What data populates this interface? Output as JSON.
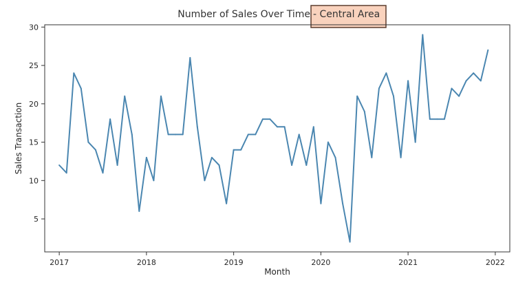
{
  "chart_data": {
    "type": "line",
    "title_main": "Number of Sales Over Time",
    "title_highlight": "- Central Area",
    "xlabel": "Month",
    "ylabel": "Sales Transaction",
    "x_ticks": [
      "2017",
      "2018",
      "2019",
      "2020",
      "2021",
      "2022"
    ],
    "y_ticks": [
      5,
      10,
      15,
      20,
      25,
      30
    ],
    "xlim": [
      "2016-11-01",
      "2022-03-01"
    ],
    "ylim": [
      0.7,
      30.3
    ],
    "grid": false,
    "colors": {
      "line": "#4a86b0",
      "highlight_fill": "#f9d2bd",
      "highlight_border": "#5c3d2e",
      "axis": "#333333"
    },
    "series": [
      {
        "x": [
          "2017-01",
          "2017-02",
          "2017-03",
          "2017-04",
          "2017-05",
          "2017-06",
          "2017-07",
          "2017-08",
          "2017-09",
          "2017-10",
          "2017-11",
          "2017-12",
          "2018-01",
          "2018-02",
          "2018-03",
          "2018-04",
          "2018-05",
          "2018-06",
          "2018-07",
          "2018-08",
          "2018-09",
          "2018-10",
          "2018-11",
          "2018-12",
          "2019-01",
          "2019-02",
          "2019-03",
          "2019-04",
          "2019-05",
          "2019-06",
          "2019-07",
          "2019-08",
          "2019-09",
          "2019-10",
          "2019-11",
          "2019-12",
          "2020-01",
          "2020-02",
          "2020-03",
          "2020-04",
          "2020-05",
          "2020-06",
          "2020-07",
          "2020-08",
          "2020-09",
          "2020-10",
          "2020-11",
          "2020-12",
          "2021-01",
          "2021-02",
          "2021-03",
          "2021-04",
          "2021-05",
          "2021-06",
          "2021-07",
          "2021-08",
          "2021-09",
          "2021-10",
          "2021-11",
          "2021-12"
        ],
        "values": [
          12,
          11,
          24,
          22,
          15,
          14,
          11,
          18,
          12,
          21,
          16,
          6,
          13,
          10,
          21,
          16,
          16,
          16,
          26,
          17,
          10,
          13,
          12,
          7,
          14,
          14,
          16,
          16,
          18,
          18,
          17,
          17,
          12,
          16,
          12,
          17,
          7,
          15,
          13,
          7,
          2,
          21,
          19,
          13,
          22,
          24,
          21,
          13,
          23,
          15,
          29,
          18,
          18,
          18,
          22,
          21,
          23,
          24,
          23,
          27
        ]
      }
    ]
  }
}
